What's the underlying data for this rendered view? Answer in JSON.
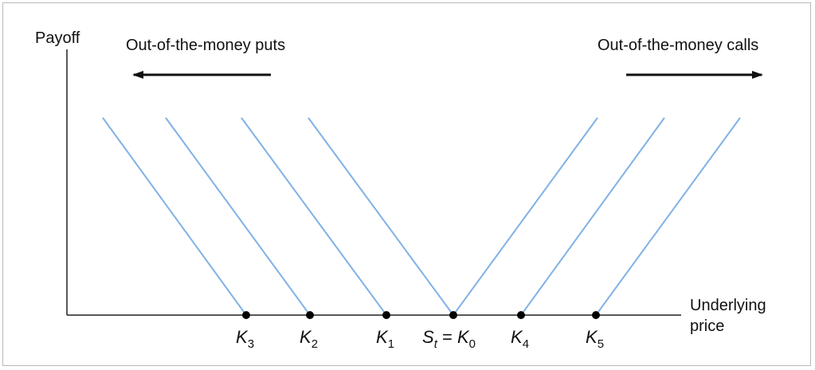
{
  "labels": {
    "y_axis": "Payoff",
    "x_axis_line1": "Underlying",
    "x_axis_line2": "price",
    "puts_caption": "Out-of-the-money puts",
    "calls_caption": "Out-of-the-money calls"
  },
  "strikes": [
    {
      "main": "K",
      "sub": "3"
    },
    {
      "main": "K",
      "sub": "2"
    },
    {
      "main": "K",
      "sub": "1"
    },
    {
      "pre": "S",
      "pre_sub": "t",
      "eq": " = ",
      "main": "K",
      "sub": "0"
    },
    {
      "main": "K",
      "sub": "4"
    },
    {
      "main": "K",
      "sub": "5"
    }
  ],
  "colors": {
    "payoff_line": "#7fb2e5",
    "axis": "#222222",
    "dot": "#000000",
    "frame": "#b9b9b9"
  }
}
